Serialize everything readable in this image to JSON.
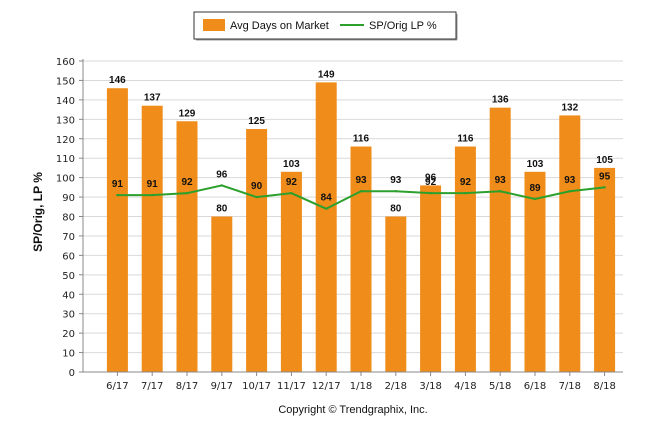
{
  "chart_data": {
    "type": "bar",
    "categories": [
      "6/17",
      "7/17",
      "8/17",
      "9/17",
      "10/17",
      "11/17",
      "12/17",
      "1/18",
      "2/18",
      "3/18",
      "4/18",
      "5/18",
      "6/18",
      "7/18",
      "8/18"
    ],
    "series": [
      {
        "name": "Avg Days on Market",
        "type": "bar",
        "color": "#ef8c1a",
        "values": [
          146,
          137,
          129,
          80,
          125,
          103,
          149,
          116,
          80,
          96,
          116,
          136,
          103,
          132,
          105
        ]
      },
      {
        "name": "SP/Orig LP %",
        "type": "line",
        "color": "#2ca02c",
        "values": [
          91,
          91,
          92,
          96,
          90,
          92,
          84,
          93,
          93,
          92,
          92,
          93,
          89,
          93,
          95
        ]
      }
    ],
    "yticks": [
      0,
      10,
      20,
      30,
      40,
      50,
      60,
      70,
      80,
      90,
      100,
      110,
      120,
      130,
      140,
      150,
      160
    ],
    "ylim": [
      0,
      160
    ],
    "ylabel": "SP/Orig, LP %",
    "xlabel": "",
    "legend_position": "top-center",
    "grid": true,
    "footer": "Copyright © Trendgraphix, Inc."
  }
}
